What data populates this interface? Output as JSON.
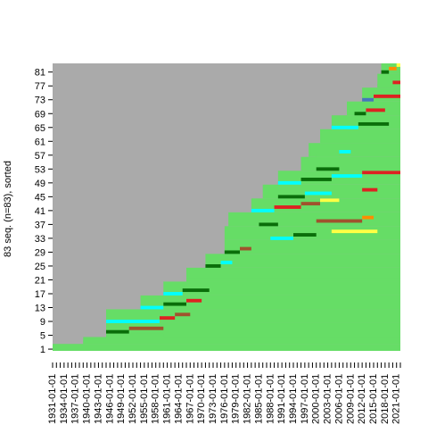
{
  "chart_data": {
    "type": "heatmap",
    "ylabel": "83 seq. (n=83), sorted",
    "y_ticks": [
      "1",
      "5",
      "9",
      "13",
      "17",
      "21",
      "25",
      "29",
      "33",
      "37",
      "41",
      "45",
      "49",
      "53",
      "57",
      "61",
      "65",
      "69",
      "73",
      "77",
      "81"
    ],
    "x_tick_labels": [
      "1931-01-01",
      "1934-01-01",
      "1937-01-01",
      "1940-01-01",
      "1943-01-01",
      "1946-01-01",
      "1949-01-01",
      "1952-01-01",
      "1955-01-01",
      "1958-01-01",
      "1961-01-01",
      "1964-01-01",
      "1967-01-01",
      "1970-01-01",
      "1973-01-01",
      "1976-01-01",
      "1979-01-01",
      "1982-01-01",
      "1985-01-01",
      "1988-01-01",
      "1991-01-01",
      "1994-01-01",
      "1997-01-01",
      "2000-01-01",
      "2003-01-01",
      "2006-01-01",
      "2009-01-01",
      "2012-01-01",
      "2015-01-01",
      "2018-01-01",
      "2021-01-01"
    ],
    "x_range": [
      1931,
      2022
    ],
    "n_sequences": 83,
    "states": {
      "missing": "#aaaaaa",
      "light_green": "#66dd66",
      "dark_green": "#0a6e0a",
      "red": "#dd2222",
      "cyan": "#00ffff",
      "brown": "#a0522d",
      "yellow": "#ffff44",
      "orange": "#ff8c00",
      "blue": "#4477bb"
    },
    "sequences": [
      {
        "id": 1,
        "start": 1931,
        "segments": [
          {
            "from": 1931,
            "to": 2022,
            "state": "light_green"
          }
        ]
      },
      {
        "id": 3,
        "start": 1939,
        "segments": [
          {
            "from": 1939,
            "to": 2022,
            "state": "light_green"
          }
        ]
      },
      {
        "id": 5,
        "start": 1945,
        "segments": [
          {
            "from": 1945,
            "to": 1960,
            "state": "light_green"
          },
          {
            "from": 1945,
            "to": 1951,
            "state": "dark_green"
          },
          {
            "from": 1951,
            "to": 1960,
            "state": "brown"
          }
        ]
      },
      {
        "id": 9,
        "start": 1945,
        "segments": [
          {
            "from": 1945,
            "to": 1959,
            "state": "cyan"
          },
          {
            "from": 1959,
            "to": 1963,
            "state": "red"
          },
          {
            "from": 1963,
            "to": 1967,
            "state": "brown"
          }
        ]
      },
      {
        "id": 13,
        "start": 1954,
        "segments": [
          {
            "from": 1954,
            "to": 1960,
            "state": "cyan"
          },
          {
            "from": 1960,
            "to": 1966,
            "state": "dark_green"
          },
          {
            "from": 1966,
            "to": 1970,
            "state": "red"
          }
        ]
      },
      {
        "id": 17,
        "start": 1960,
        "segments": [
          {
            "from": 1960,
            "to": 1965,
            "state": "cyan"
          },
          {
            "from": 1965,
            "to": 1972,
            "state": "dark_green"
          }
        ]
      },
      {
        "id": 21,
        "start": 1966,
        "segments": [
          {
            "from": 1966,
            "to": 2022,
            "state": "light_green"
          }
        ]
      },
      {
        "id": 25,
        "start": 1971,
        "segments": [
          {
            "from": 1971,
            "to": 1975,
            "state": "dark_green"
          },
          {
            "from": 1975,
            "to": 1978,
            "state": "cyan"
          }
        ]
      },
      {
        "id": 29,
        "start": 1976,
        "segments": [
          {
            "from": 1976,
            "to": 1980,
            "state": "dark_green"
          },
          {
            "from": 1980,
            "to": 1983,
            "state": "brown"
          }
        ]
      },
      {
        "id": 33,
        "start": 1976,
        "segments": [
          {
            "from": 1988,
            "to": 1994,
            "state": "cyan"
          },
          {
            "from": 1994,
            "to": 2000,
            "state": "dark_green"
          },
          {
            "from": 2004,
            "to": 2016,
            "state": "yellow"
          }
        ]
      },
      {
        "id": 37,
        "start": 1977,
        "segments": [
          {
            "from": 1985,
            "to": 1990,
            "state": "dark_green"
          },
          {
            "from": 2000,
            "to": 2012,
            "state": "brown"
          },
          {
            "from": 2012,
            "to": 2015,
            "state": "orange"
          }
        ]
      },
      {
        "id": 41,
        "start": 1983,
        "segments": [
          {
            "from": 1983,
            "to": 1989,
            "state": "cyan"
          },
          {
            "from": 1989,
            "to": 1996,
            "state": "red"
          },
          {
            "from": 1996,
            "to": 2001,
            "state": "brown"
          },
          {
            "from": 2001,
            "to": 2006,
            "state": "yellow"
          }
        ]
      },
      {
        "id": 45,
        "start": 1986,
        "segments": [
          {
            "from": 1990,
            "to": 1997,
            "state": "dark_green"
          },
          {
            "from": 1997,
            "to": 2004,
            "state": "cyan"
          },
          {
            "from": 2012,
            "to": 2016,
            "state": "red"
          }
        ]
      },
      {
        "id": 49,
        "start": 1990,
        "segments": [
          {
            "from": 1990,
            "to": 1996,
            "state": "cyan"
          },
          {
            "from": 1996,
            "to": 2004,
            "state": "dark_green"
          },
          {
            "from": 2004,
            "to": 2012,
            "state": "cyan"
          },
          {
            "from": 2012,
            "to": 2022,
            "state": "red"
          }
        ]
      },
      {
        "id": 53,
        "start": 1996,
        "segments": [
          {
            "from": 2000,
            "to": 2006,
            "state": "dark_green"
          }
        ]
      },
      {
        "id": 57,
        "start": 1998,
        "segments": [
          {
            "from": 2000,
            "to": 2006,
            "state": "light_green"
          },
          {
            "from": 2006,
            "to": 2009,
            "state": "cyan"
          }
        ]
      },
      {
        "id": 61,
        "start": 2001,
        "segments": [
          {
            "from": 2001,
            "to": 2022,
            "state": "light_green"
          }
        ]
      },
      {
        "id": 65,
        "start": 2004,
        "segments": [
          {
            "from": 2004,
            "to": 2011,
            "state": "cyan"
          },
          {
            "from": 2011,
            "to": 2019,
            "state": "dark_green"
          }
        ]
      },
      {
        "id": 69,
        "start": 2008,
        "segments": [
          {
            "from": 2010,
            "to": 2013,
            "state": "dark_green"
          },
          {
            "from": 2013,
            "to": 2018,
            "state": "red"
          }
        ]
      },
      {
        "id": 73,
        "start": 2012,
        "segments": [
          {
            "from": 2012,
            "to": 2015,
            "state": "blue"
          },
          {
            "from": 2015,
            "to": 2022,
            "state": "red"
          }
        ]
      },
      {
        "id": 77,
        "start": 2016,
        "segments": [
          {
            "from": 2016,
            "to": 2020,
            "state": "light_green"
          },
          {
            "from": 2020,
            "to": 2022,
            "state": "red"
          }
        ]
      },
      {
        "id": 81,
        "start": 2017,
        "segments": [
          {
            "from": 2017,
            "to": 2019,
            "state": "dark_green"
          },
          {
            "from": 2019,
            "to": 2021,
            "state": "orange"
          },
          {
            "from": 2021,
            "to": 2022,
            "state": "yellow"
          }
        ]
      }
    ]
  }
}
